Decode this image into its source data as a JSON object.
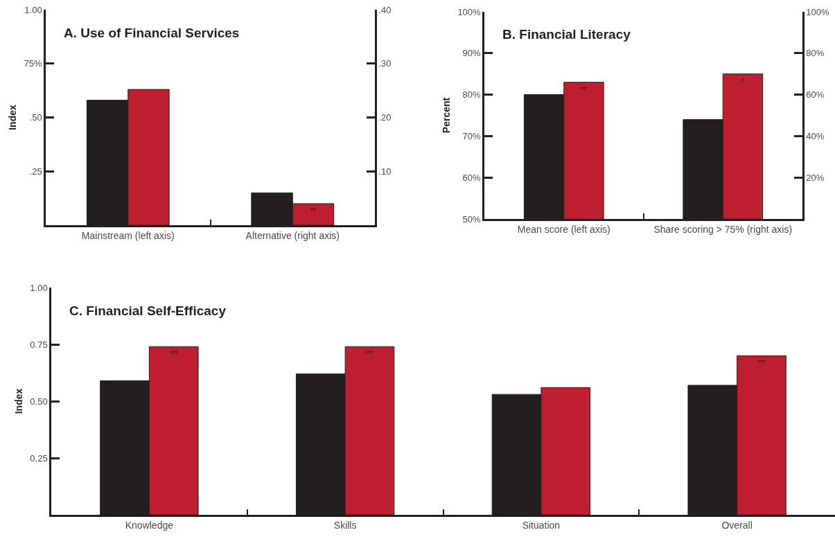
{
  "chart_data": [
    {
      "type": "bar",
      "title": "A. Use of Financial Services",
      "ylabel": "Index",
      "categories": [
        "Mainstream (left axis)",
        "Alternative (right axis)"
      ],
      "series": [
        {
          "color": "#231f20",
          "values": [
            0.58,
            null
          ]
        },
        {
          "color": "#be1e2d",
          "values": [
            0.63,
            null
          ]
        },
        {
          "color": "#231f20",
          "values": [
            null,
            0.06
          ],
          "axis": "y2"
        },
        {
          "color": "#be1e2d",
          "values": [
            null,
            0.04
          ],
          "axis": "y2"
        }
      ],
      "ylim": [
        0,
        1
      ],
      "yticks": [
        {
          "value": 0.25,
          "label": ".25"
        },
        {
          "value": 0.5,
          "label": ".50"
        },
        {
          "value": 0.75,
          "label": "75%"
        },
        {
          "value": 1,
          "label": "1.00"
        }
      ],
      "y2lim": [
        0,
        0.4
      ],
      "y2ticks": [
        {
          "value": 0.1,
          "label": ".10"
        },
        {
          "value": 0.2,
          "label": ".20"
        },
        {
          "value": 0.3,
          "label": ".30"
        },
        {
          "value": 0.4,
          "label": ".40"
        }
      ],
      "annotations": [
        {
          "text": "**",
          "x": "Alternative (right axis)",
          "y": 0.1
        }
      ]
    },
    {
      "type": "bar",
      "title": "B. Financial Literacy",
      "ylabel": "Percent",
      "categories": [
        "Mean score (left axis)",
        "Share scoring > 75% (right axis)"
      ],
      "series": [
        {
          "color": "#231f20",
          "values": [
            80,
            null
          ]
        },
        {
          "color": "#be1e2d",
          "values": [
            83,
            null
          ]
        },
        {
          "color": "#231f20",
          "values": [
            null,
            48
          ],
          "axis": "y2"
        },
        {
          "color": "#be1e2d",
          "values": [
            null,
            70
          ],
          "axis": "y2"
        }
      ],
      "ylim": [
        50,
        100
      ],
      "yticks": [
        {
          "value": 50,
          "label": "50%"
        },
        {
          "value": 60,
          "label": "60%"
        },
        {
          "value": 70,
          "label": "70%"
        },
        {
          "value": 80,
          "label": "80%"
        },
        {
          "value": 90,
          "label": "90%"
        },
        {
          "value": 100,
          "label": "100%"
        }
      ],
      "y2lim": [
        0,
        100
      ],
      "y2ticks": [
        {
          "value": 20,
          "label": "20%"
        },
        {
          "value": 40,
          "label": "40%"
        },
        {
          "value": 60,
          "label": "60%"
        },
        {
          "value": 80,
          "label": "80%"
        },
        {
          "value": 100,
          "label": "100%"
        }
      ],
      "annotations": [
        {
          "text": "**",
          "x": "Mean score (left axis)",
          "y": 83
        },
        {
          "text": "*",
          "x": "Share scoring > 75% (right axis)",
          "y": 85
        }
      ]
    },
    {
      "type": "bar",
      "title": "C. Financial Self-Efficacy",
      "ylabel": "Index",
      "categories": [
        "Knowledge",
        "Skills",
        "Situation",
        "Overall"
      ],
      "series": [
        {
          "color": "#231f20",
          "values": [
            0.59,
            0.62,
            0.53,
            0.57
          ]
        },
        {
          "color": "#be1e2d",
          "values": [
            0.74,
            0.74,
            0.56,
            0.7
          ]
        }
      ],
      "ylim": [
        0,
        1
      ],
      "yticks": [
        {
          "value": 0.25,
          "label": "0.25"
        },
        {
          "value": 0.5,
          "label": "0.50"
        },
        {
          "value": 0.75,
          "label": "0.75"
        },
        {
          "value": 1,
          "label": "1.00"
        }
      ],
      "annotations": [
        {
          "text": "***",
          "x": "Knowledge",
          "y": 0.74
        },
        {
          "text": "***",
          "x": "Skills",
          "y": 0.74
        },
        {
          "text": "***",
          "x": "Overall",
          "y": 0.7
        }
      ]
    }
  ]
}
